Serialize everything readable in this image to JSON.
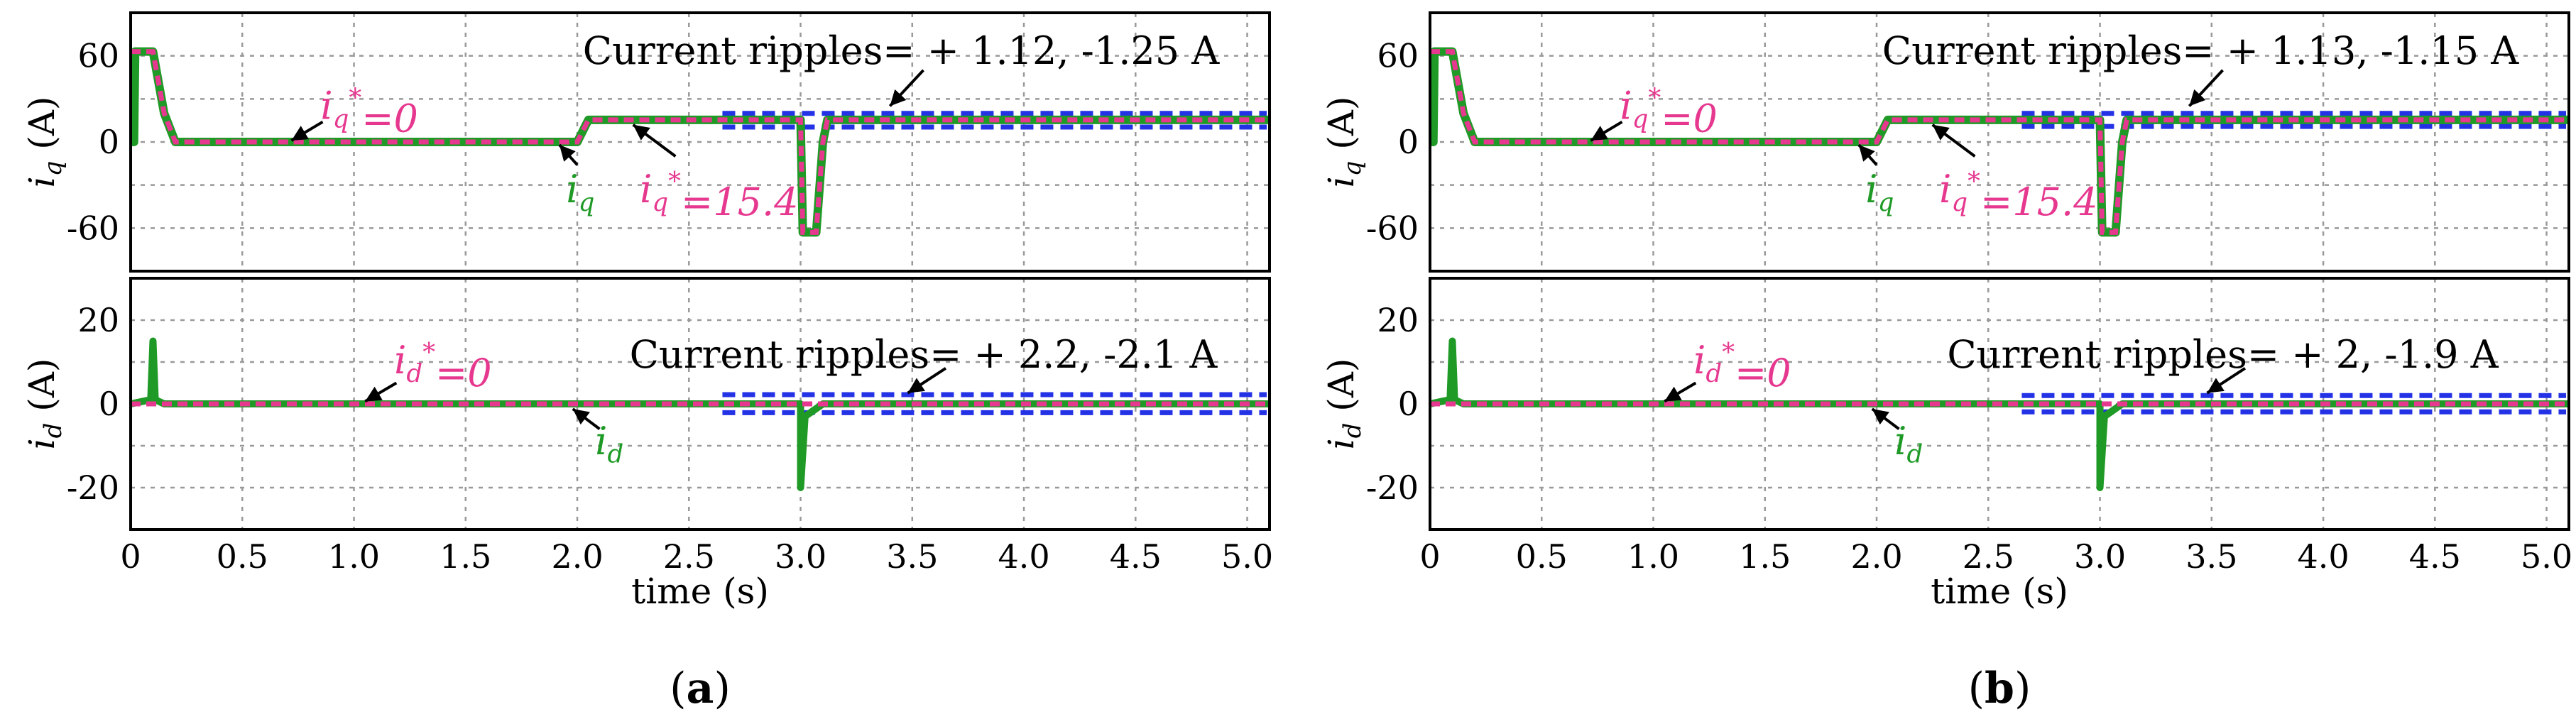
{
  "figure": {
    "xlabel": "time (s)",
    "colors": {
      "measured": "#1f9a26",
      "reference": "#e6388f",
      "ripple_band": "#2432e6",
      "grid": "#999999"
    }
  },
  "panels": [
    {
      "label_pre": "(",
      "label": "a",
      "label_post": ")",
      "iq_ripple_text": "Current ripples= + 1.12, -1.25 A",
      "id_ripple_text": "Current ripples= + 2.2, -2.1 A",
      "ripple_band_start_s": 2.65,
      "iq_ripple": [
        1.12,
        -1.25
      ],
      "id_ripple": [
        2.2,
        -2.1
      ]
    },
    {
      "label_pre": "(",
      "label": "b",
      "label_post": ")",
      "iq_ripple_text": "Current ripples= + 1.13, -1.15 A",
      "id_ripple_text": "Current ripples= + 2, -1.9 A",
      "ripple_band_start_s": 2.65,
      "iq_ripple": [
        1.13,
        -1.15
      ],
      "id_ripple": [
        2.0,
        -1.9
      ]
    }
  ],
  "chart_data": [
    {
      "type": "line",
      "title": "(a) iq",
      "ylabel": "iq (A)",
      "xlabel": "",
      "xlim": [
        0,
        5.1
      ],
      "ylim": [
        -90,
        90
      ],
      "yticks": [
        60,
        0,
        -60
      ],
      "series": [
        {
          "name": "iq",
          "x": [
            0,
            0.015,
            0.02,
            0.1,
            0.15,
            0.2,
            1.95,
            2.0,
            2.05,
            3.0,
            3.01,
            3.07,
            3.1,
            3.12,
            5.1
          ],
          "y": [
            0,
            0,
            63,
            63,
            20,
            0,
            0,
            0,
            15.4,
            15.4,
            -63,
            -63,
            0,
            15.4,
            15.4
          ]
        },
        {
          "name": "iq*",
          "x": [
            0,
            0.02,
            0.1,
            0.15,
            0.2,
            2.0,
            2.05,
            3.0,
            3.01,
            3.07,
            3.1,
            3.12,
            5.1
          ],
          "y": [
            63,
            63,
            63,
            20,
            0,
            0,
            15.4,
            15.4,
            -63,
            -63,
            0,
            15.4,
            15.4
          ]
        }
      ],
      "annotations": [
        {
          "text": "iq*=0",
          "x": 1.1,
          "y": 0
        },
        {
          "text": "iq",
          "x": 2.0,
          "y": 0
        },
        {
          "text": "iq*=15.4",
          "x": 2.3,
          "y": 15.4
        },
        {
          "text": "Current ripples= + 1.12, -1.25 A",
          "x": 3.4,
          "y": 18
        }
      ]
    },
    {
      "type": "line",
      "title": "(a) id",
      "ylabel": "id (A)",
      "xlabel": "time (s)",
      "xlim": [
        0,
        5.1
      ],
      "ylim": [
        -30,
        30
      ],
      "yticks": [
        20,
        0,
        -20
      ],
      "xticks": [
        0,
        0.5,
        1.0,
        1.5,
        2.0,
        2.5,
        3.0,
        3.5,
        4.0,
        4.5,
        5.0
      ],
      "xticklabels": [
        "0",
        "0.5",
        "1.0",
        "1.5",
        "2.0",
        "2.5",
        "3.0",
        "3.5",
        "4.0",
        "4.5",
        "5.0"
      ],
      "series": [
        {
          "name": "id",
          "x": [
            0,
            0.09,
            0.1,
            0.11,
            0.15,
            2.0,
            2.0,
            3.0,
            3.0,
            3.02,
            3.1,
            5.1
          ],
          "y": [
            0,
            1,
            15,
            1,
            0,
            0,
            0,
            0,
            -20,
            -3,
            0,
            0
          ]
        },
        {
          "name": "id*",
          "x": [
            0,
            5.1
          ],
          "y": [
            0,
            0
          ]
        }
      ],
      "annotations": [
        {
          "text": "id*=0",
          "x": 1.1,
          "y": 0
        },
        {
          "text": "id",
          "x": 2.0,
          "y": 0
        },
        {
          "text": "Current ripples= + 2.2, -2.1 A",
          "x": 3.5,
          "y": 2
        }
      ]
    },
    {
      "type": "line",
      "title": "(b) iq",
      "ylabel": "iq (A)",
      "xlabel": "",
      "xlim": [
        0,
        5.1
      ],
      "ylim": [
        -90,
        90
      ],
      "yticks": [
        60,
        0,
        -60
      ],
      "series": [
        {
          "name": "iq",
          "x": [
            0,
            0.015,
            0.02,
            0.1,
            0.15,
            0.2,
            1.95,
            2.0,
            2.05,
            3.0,
            3.01,
            3.07,
            3.1,
            3.12,
            5.1
          ],
          "y": [
            0,
            0,
            63,
            63,
            20,
            0,
            0,
            0,
            15.4,
            15.4,
            -63,
            -63,
            0,
            15.4,
            15.4
          ]
        },
        {
          "name": "iq*",
          "x": [
            0,
            0.02,
            0.1,
            0.15,
            0.2,
            2.0,
            2.05,
            3.0,
            3.01,
            3.07,
            3.1,
            3.12,
            5.1
          ],
          "y": [
            63,
            63,
            63,
            20,
            0,
            0,
            15.4,
            15.4,
            -63,
            -63,
            0,
            15.4,
            15.4
          ]
        }
      ],
      "annotations": [
        {
          "text": "iq*=0",
          "x": 1.1,
          "y": 0
        },
        {
          "text": "iq",
          "x": 2.0,
          "y": 0
        },
        {
          "text": "iq*=15.4",
          "x": 2.3,
          "y": 15.4
        },
        {
          "text": "Current ripples= + 1.13, -1.15 A",
          "x": 3.4,
          "y": 18
        }
      ]
    },
    {
      "type": "line",
      "title": "(b) id",
      "ylabel": "id (A)",
      "xlabel": "time (s)",
      "xlim": [
        0,
        5.1
      ],
      "ylim": [
        -30,
        30
      ],
      "yticks": [
        20,
        0,
        -20
      ],
      "xticks": [
        0,
        0.5,
        1.0,
        1.5,
        2.0,
        2.5,
        3.0,
        3.5,
        4.0,
        4.5,
        5.0
      ],
      "xticklabels": [
        "0",
        "0.5",
        "1.0",
        "1.5",
        "2.0",
        "2.5",
        "3.0",
        "3.5",
        "4.0",
        "4.5",
        "5.0"
      ],
      "series": [
        {
          "name": "id",
          "x": [
            0,
            0.09,
            0.1,
            0.11,
            0.15,
            2.0,
            2.0,
            3.0,
            3.0,
            3.02,
            3.1,
            5.1
          ],
          "y": [
            0,
            1,
            15,
            1,
            0,
            0,
            0,
            0,
            -20,
            -3,
            0,
            0
          ]
        },
        {
          "name": "id*",
          "x": [
            0,
            5.1
          ],
          "y": [
            0,
            0
          ]
        }
      ],
      "annotations": [
        {
          "text": "id*=0",
          "x": 1.1,
          "y": 0
        },
        {
          "text": "id",
          "x": 2.0,
          "y": 0
        },
        {
          "text": "Current ripples= + 2, -1.9 A",
          "x": 3.5,
          "y": 2
        }
      ]
    }
  ]
}
